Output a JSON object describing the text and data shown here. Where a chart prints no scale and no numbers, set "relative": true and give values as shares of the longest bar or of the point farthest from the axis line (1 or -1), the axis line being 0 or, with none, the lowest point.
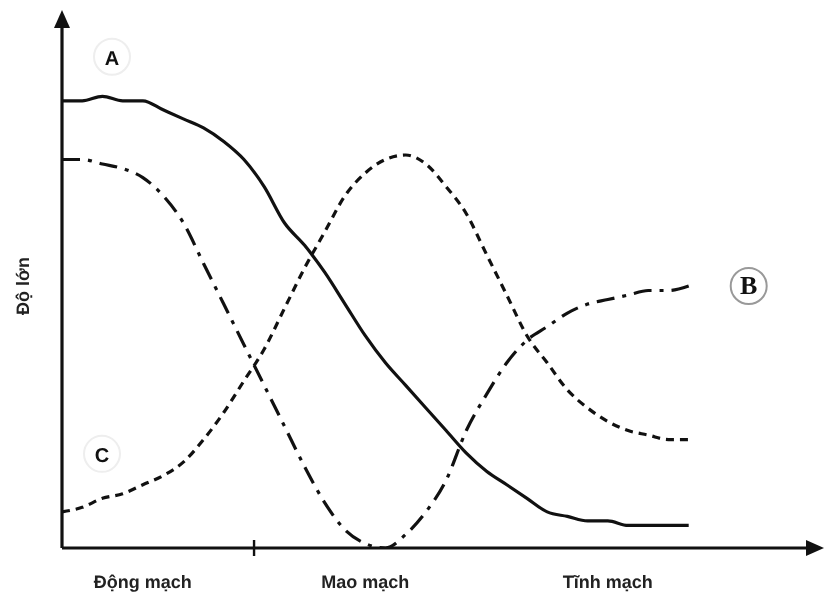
{
  "chart_data": {
    "type": "line",
    "relative": true,
    "ylabel": "Độ lớn",
    "legend": false,
    "grid": false,
    "marker": "none",
    "categories": [
      null,
      null,
      null,
      null,
      "Động mạch",
      null,
      null,
      null,
      null,
      null,
      null,
      null,
      null,
      null,
      null,
      "Mao mạch",
      null,
      null,
      null,
      null,
      null,
      null,
      null,
      null,
      null,
      null,
      null,
      "Tĩnh mạch",
      null,
      null,
      null,
      null,
      null,
      null,
      null,
      null,
      null,
      null
    ],
    "series": [
      {
        "name": "A",
        "color": "#111111",
        "line_style": "solid",
        "values": [
          0.99,
          0.99,
          1.0,
          0.99,
          0.99,
          0.97,
          0.95,
          0.93,
          0.9,
          0.86,
          0.8,
          0.72,
          0.67,
          0.61,
          0.54,
          0.47,
          0.41,
          0.36,
          0.31,
          0.26,
          0.21,
          0.17,
          0.14,
          0.11,
          0.08,
          0.07,
          0.06,
          0.06,
          0.05,
          0.05,
          0.05,
          0.05,
          null,
          null,
          null,
          null,
          null,
          null
        ]
      },
      {
        "name": "B",
        "color": "#111111",
        "line_style": "dashed",
        "values": [
          0.86,
          0.86,
          0.85,
          0.84,
          0.82,
          0.78,
          0.72,
          0.63,
          0.54,
          0.45,
          0.36,
          0.27,
          0.18,
          0.1,
          0.04,
          0.01,
          0.0,
          0.03,
          0.08,
          0.15,
          0.26,
          0.34,
          0.41,
          0.46,
          0.49,
          0.52,
          0.54,
          0.55,
          0.56,
          0.57,
          0.57,
          0.58,
          null,
          null,
          null,
          null,
          null,
          null
        ]
      },
      {
        "name": "C",
        "color": "#111111",
        "line_style": "dotted",
        "values": [
          0.08,
          0.09,
          0.11,
          0.12,
          0.14,
          0.16,
          0.19,
          0.24,
          0.3,
          0.37,
          0.44,
          0.53,
          0.62,
          0.7,
          0.78,
          0.83,
          0.86,
          0.87,
          0.85,
          0.8,
          0.74,
          0.65,
          0.56,
          0.47,
          0.41,
          0.35,
          0.31,
          0.28,
          0.26,
          0.25,
          0.24,
          0.24,
          null,
          null,
          null,
          null,
          null,
          null
        ]
      }
    ]
  }
}
